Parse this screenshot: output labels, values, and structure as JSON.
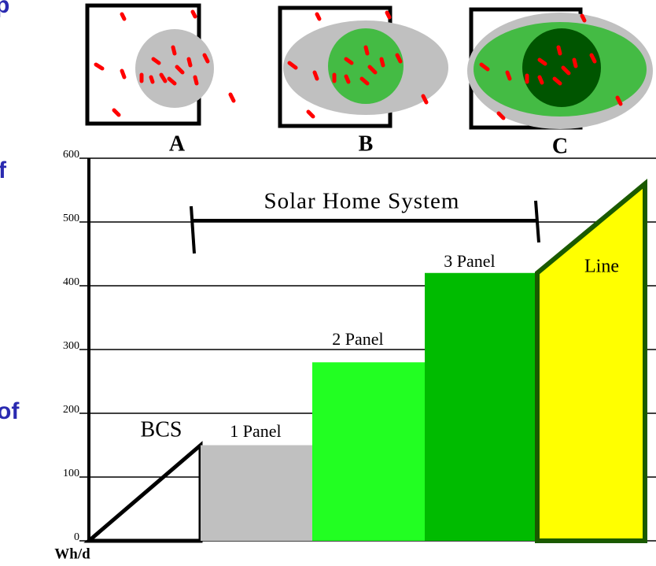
{
  "chart_data": {
    "type": "bar",
    "ylabel": "Wh/d",
    "ylim": [
      0,
      600
    ],
    "yticks": [
      0,
      100,
      200,
      300,
      400,
      500,
      600
    ],
    "grid": true,
    "categories": [
      "BCS",
      "1 Panel",
      "2 Panel",
      "3 Panel",
      "Line"
    ],
    "start_values": [
      0,
      150,
      280,
      420,
      420
    ],
    "values": [
      150,
      150,
      280,
      420,
      560
    ],
    "colors": [
      "#ffffff",
      "#c0c0c0",
      "#22ff22",
      "#00bb00",
      "#ffff00"
    ],
    "annotation": "Solar Home System",
    "panels": [
      "A",
      "B",
      "C"
    ],
    "fragments": [
      "p",
      "f",
      "of"
    ]
  }
}
